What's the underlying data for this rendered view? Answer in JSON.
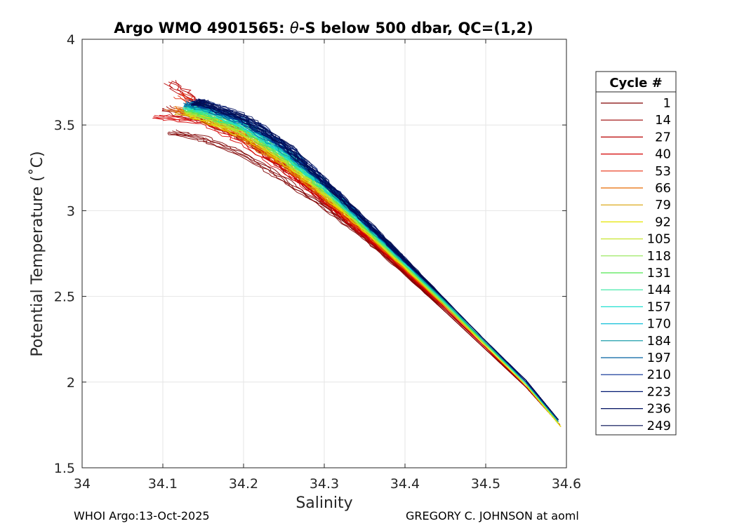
{
  "chart_data": {
    "type": "line",
    "title_prefix": "Argo WMO 4901565: ",
    "title_theta": "θ",
    "title_suffix": "-S below 500 dbar,  QC=(1,2)",
    "xlabel": "Salinity",
    "ylabel": "Potential Temperature (˚C)",
    "xlim": [
      34,
      34.6
    ],
    "ylim": [
      1.5,
      4
    ],
    "xticks": [
      34,
      34.1,
      34.2,
      34.3,
      34.4,
      34.5,
      34.6
    ],
    "yticks": [
      1.5,
      2,
      2.5,
      3,
      3.5,
      4
    ],
    "xtick_labels": [
      "34",
      "34.1",
      "34.2",
      "34.3",
      "34.4",
      "34.5",
      "34.6"
    ],
    "ytick_labels": [
      "1.5",
      "2",
      "2.5",
      "3",
      "3.5",
      "4"
    ],
    "grid": true,
    "legend_position": "right-outside",
    "legend_title": "Cycle #",
    "legend": [
      {
        "label": "1",
        "color": "#800000"
      },
      {
        "label": "14",
        "color": "#9a0000"
      },
      {
        "label": "27",
        "color": "#b80000"
      },
      {
        "label": "40",
        "color": "#d40000"
      },
      {
        "label": "53",
        "color": "#e83010"
      },
      {
        "label": "66",
        "color": "#e86a00"
      },
      {
        "label": "79",
        "color": "#d9a000"
      },
      {
        "label": "92",
        "color": "#e6e600"
      },
      {
        "label": "105",
        "color": "#c8e632"
      },
      {
        "label": "118",
        "color": "#90e650"
      },
      {
        "label": "131",
        "color": "#50e650"
      },
      {
        "label": "144",
        "color": "#30e6a0"
      },
      {
        "label": "157",
        "color": "#20e0d0"
      },
      {
        "label": "170",
        "color": "#10c0d8"
      },
      {
        "label": "184",
        "color": "#0090a0"
      },
      {
        "label": "197",
        "color": "#0060a0"
      },
      {
        "label": "210",
        "color": "#002890"
      },
      {
        "label": "223",
        "color": "#001870"
      },
      {
        "label": "236",
        "color": "#001060"
      },
      {
        "label": "249",
        "color": "#000c50"
      }
    ],
    "envelope": {
      "upper_edge": [
        [
          34.115,
          3.66
        ],
        [
          34.14,
          3.64
        ],
        [
          34.2,
          3.55
        ],
        [
          34.25,
          3.4
        ],
        [
          34.3,
          3.17
        ],
        [
          34.35,
          2.93
        ],
        [
          34.4,
          2.7
        ],
        [
          34.45,
          2.45
        ],
        [
          34.5,
          2.22
        ],
        [
          34.55,
          1.99
        ],
        [
          34.59,
          1.78
        ]
      ],
      "lower_edge": [
        [
          34.11,
          3.46
        ],
        [
          34.15,
          3.42
        ],
        [
          34.2,
          3.33
        ],
        [
          34.25,
          3.18
        ],
        [
          34.3,
          3.02
        ],
        [
          34.35,
          2.84
        ],
        [
          34.4,
          2.62
        ],
        [
          34.45,
          2.4
        ],
        [
          34.5,
          2.18
        ],
        [
          34.55,
          1.96
        ],
        [
          34.59,
          1.75
        ]
      ],
      "salinity_extent": [
        34.09,
        34.593
      ],
      "theta_extent": [
        1.74,
        3.75
      ]
    },
    "series": [
      {
        "name": "1",
        "x": [
          34.11,
          34.15,
          34.2,
          34.25,
          34.3,
          34.35,
          34.4,
          34.45,
          34.5,
          34.55,
          34.59
        ],
        "y": [
          3.46,
          3.42,
          3.33,
          3.18,
          3.02,
          2.84,
          2.63,
          2.41,
          2.19,
          1.97,
          1.76
        ]
      },
      {
        "name": "14",
        "x": [
          34.1,
          34.15,
          34.2,
          34.25,
          34.3,
          34.35,
          34.4,
          34.45,
          34.5,
          34.55,
          34.59
        ],
        "y": [
          3.6,
          3.53,
          3.42,
          3.25,
          3.05,
          2.85,
          2.64,
          2.42,
          2.2,
          1.97,
          1.76
        ]
      },
      {
        "name": "27",
        "x": [
          34.11,
          34.15,
          34.2,
          34.25,
          34.3,
          34.35,
          34.4,
          34.45,
          34.5,
          34.55,
          34.592
        ],
        "y": [
          3.75,
          3.6,
          3.44,
          3.27,
          3.07,
          2.86,
          2.65,
          2.43,
          2.2,
          1.98,
          1.75
        ]
      },
      {
        "name": "40",
        "x": [
          34.09,
          34.15,
          34.2,
          34.25,
          34.3,
          34.35,
          34.4,
          34.45,
          34.5,
          34.55,
          34.593
        ],
        "y": [
          3.55,
          3.52,
          3.4,
          3.24,
          3.06,
          2.86,
          2.65,
          2.43,
          2.2,
          1.98,
          1.74
        ]
      },
      {
        "name": "53",
        "x": [
          34.12,
          34.15,
          34.2,
          34.25,
          34.3,
          34.35,
          34.4,
          34.45,
          34.5,
          34.55,
          34.59
        ],
        "y": [
          3.68,
          3.58,
          3.45,
          3.28,
          3.09,
          2.88,
          2.66,
          2.44,
          2.21,
          1.98,
          1.76
        ]
      },
      {
        "name": "66",
        "x": [
          34.11,
          34.15,
          34.2,
          34.25,
          34.3,
          34.35,
          34.4,
          34.45,
          34.5,
          34.55,
          34.59
        ],
        "y": [
          3.6,
          3.55,
          3.43,
          3.27,
          3.08,
          2.88,
          2.66,
          2.44,
          2.21,
          1.98,
          1.76
        ]
      },
      {
        "name": "79",
        "x": [
          34.12,
          34.15,
          34.2,
          34.25,
          34.3,
          34.35,
          34.4,
          34.45,
          34.5,
          34.55,
          34.59
        ],
        "y": [
          3.58,
          3.54,
          3.44,
          3.28,
          3.09,
          2.89,
          2.67,
          2.44,
          2.21,
          1.98,
          1.76
        ]
      },
      {
        "name": "92",
        "x": [
          34.13,
          34.15,
          34.2,
          34.25,
          34.3,
          34.35,
          34.4,
          34.45,
          34.5,
          34.55,
          34.593
        ],
        "y": [
          3.57,
          3.54,
          3.45,
          3.29,
          3.1,
          2.89,
          2.67,
          2.45,
          2.21,
          1.98,
          1.74
        ]
      },
      {
        "name": "105",
        "x": [
          34.13,
          34.15,
          34.2,
          34.25,
          34.3,
          34.35,
          34.4,
          34.45,
          34.5,
          34.55,
          34.59
        ],
        "y": [
          3.58,
          3.55,
          3.46,
          3.3,
          3.11,
          2.9,
          2.68,
          2.45,
          2.22,
          1.99,
          1.76
        ]
      },
      {
        "name": "118",
        "x": [
          34.13,
          34.15,
          34.2,
          34.25,
          34.3,
          34.35,
          34.4,
          34.45,
          34.5,
          34.55,
          34.59
        ],
        "y": [
          3.59,
          3.56,
          3.47,
          3.31,
          3.12,
          2.9,
          2.68,
          2.45,
          2.22,
          1.99,
          1.77
        ]
      },
      {
        "name": "131",
        "x": [
          34.13,
          34.15,
          34.2,
          34.25,
          34.3,
          34.35,
          34.4,
          34.45,
          34.5,
          34.55,
          34.59
        ],
        "y": [
          3.6,
          3.57,
          3.48,
          3.32,
          3.13,
          2.91,
          2.69,
          2.46,
          2.22,
          1.99,
          1.77
        ]
      },
      {
        "name": "144",
        "x": [
          34.13,
          34.15,
          34.2,
          34.25,
          34.3,
          34.35,
          34.4,
          34.45,
          34.5,
          34.55,
          34.59
        ],
        "y": [
          3.61,
          3.58,
          3.49,
          3.33,
          3.14,
          2.92,
          2.69,
          2.46,
          2.23,
          1.99,
          1.77
        ]
      },
      {
        "name": "157",
        "x": [
          34.13,
          34.15,
          34.2,
          34.25,
          34.3,
          34.35,
          34.4,
          34.45,
          34.5,
          34.55,
          34.59
        ],
        "y": [
          3.61,
          3.59,
          3.5,
          3.34,
          3.14,
          2.92,
          2.7,
          2.47,
          2.23,
          2.0,
          1.77
        ]
      },
      {
        "name": "170",
        "x": [
          34.13,
          34.15,
          34.2,
          34.25,
          34.3,
          34.35,
          34.4,
          34.45,
          34.5,
          34.55,
          34.59
        ],
        "y": [
          3.62,
          3.6,
          3.51,
          3.35,
          3.15,
          2.93,
          2.7,
          2.47,
          2.23,
          2.0,
          1.77
        ]
      },
      {
        "name": "184",
        "x": [
          34.13,
          34.15,
          34.2,
          34.25,
          34.3,
          34.35,
          34.4,
          34.45,
          34.5,
          34.55,
          34.59
        ],
        "y": [
          3.62,
          3.6,
          3.52,
          3.36,
          3.16,
          2.93,
          2.7,
          2.47,
          2.23,
          2.0,
          1.77
        ]
      },
      {
        "name": "197",
        "x": [
          34.13,
          34.15,
          34.2,
          34.25,
          34.3,
          34.35,
          34.4,
          34.45,
          34.5,
          34.55,
          34.59
        ],
        "y": [
          3.63,
          3.61,
          3.52,
          3.37,
          3.16,
          2.94,
          2.71,
          2.48,
          2.24,
          2.0,
          1.78
        ]
      },
      {
        "name": "210",
        "x": [
          34.14,
          34.15,
          34.2,
          34.25,
          34.3,
          34.35,
          34.4,
          34.45,
          34.5,
          34.55,
          34.59
        ],
        "y": [
          3.63,
          3.62,
          3.53,
          3.38,
          3.17,
          2.94,
          2.71,
          2.48,
          2.24,
          2.0,
          1.78
        ]
      },
      {
        "name": "223",
        "x": [
          34.14,
          34.15,
          34.2,
          34.25,
          34.3,
          34.35,
          34.4,
          34.45,
          34.5,
          34.55,
          34.59
        ],
        "y": [
          3.64,
          3.63,
          3.54,
          3.39,
          3.17,
          2.94,
          2.71,
          2.48,
          2.24,
          2.01,
          1.78
        ]
      },
      {
        "name": "236",
        "x": [
          34.14,
          34.15,
          34.2,
          34.25,
          34.3,
          34.35,
          34.4,
          34.45,
          34.5,
          34.55,
          34.59
        ],
        "y": [
          3.64,
          3.63,
          3.55,
          3.39,
          3.17,
          2.94,
          2.71,
          2.48,
          2.24,
          2.01,
          1.78
        ]
      },
      {
        "name": "249",
        "x": [
          34.14,
          34.15,
          34.2,
          34.25,
          34.3,
          34.35,
          34.4,
          34.45,
          34.5,
          34.55,
          34.59
        ],
        "y": [
          3.63,
          3.62,
          3.54,
          3.39,
          3.17,
          2.95,
          2.72,
          2.48,
          2.24,
          2.01,
          1.78
        ]
      }
    ]
  },
  "footer": {
    "left": "WHOI Argo:13-Oct-2025",
    "right": "GREGORY C. JOHNSON at aoml"
  }
}
